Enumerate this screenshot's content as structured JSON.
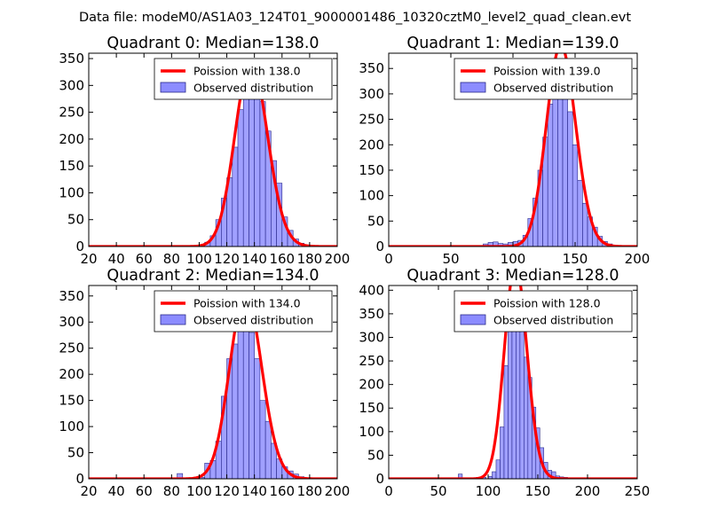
{
  "suptitle": "Data file: modeM0/AS1A03_124T01_9000001486_10320cztM0_level2_quad_clean.evt",
  "colors": {
    "bar_fill": "#8080ff",
    "bar_edge": "#2a2a8a",
    "curve": "#ff0000",
    "axis": "#000000"
  },
  "chart_data": [
    {
      "type": "bar",
      "title": "Quadrant 0: Median=138.0",
      "median": 138.0,
      "xlim": [
        20,
        200
      ],
      "ylim": [
        0,
        360
      ],
      "xticks": [
        "20",
        "40",
        "60",
        "80",
        "100",
        "120",
        "140",
        "160",
        "180",
        "200"
      ],
      "yticks": [
        "0",
        "50",
        "100",
        "150",
        "200",
        "250",
        "300",
        "350"
      ],
      "legend": [
        "Poission with 138.0",
        "Observed distribution"
      ],
      "bin_width": 4,
      "bins": [
        [
          36,
          1
        ],
        [
          48,
          1
        ],
        [
          60,
          1
        ],
        [
          72,
          1
        ],
        [
          84,
          2
        ],
        [
          88,
          2
        ],
        [
          96,
          1
        ],
        [
          100,
          3
        ],
        [
          104,
          8
        ],
        [
          108,
          20
        ],
        [
          112,
          50
        ],
        [
          116,
          90
        ],
        [
          120,
          128
        ],
        [
          124,
          185
        ],
        [
          128,
          255
        ],
        [
          132,
          285
        ],
        [
          136,
          290
        ],
        [
          140,
          292
        ],
        [
          144,
          270
        ],
        [
          148,
          215
        ],
        [
          152,
          160
        ],
        [
          156,
          118
        ],
        [
          160,
          55
        ],
        [
          164,
          30
        ],
        [
          168,
          14
        ],
        [
          172,
          6
        ],
        [
          176,
          3
        ],
        [
          180,
          1
        ]
      ]
    },
    {
      "type": "bar",
      "title": "Quadrant 1: Median=139.0",
      "median": 139.0,
      "xlim": [
        0,
        200
      ],
      "ylim": [
        0,
        380
      ],
      "xticks": [
        "0",
        "50",
        "100",
        "150",
        "200"
      ],
      "yticks": [
        "0",
        "50",
        "100",
        "150",
        "200",
        "250",
        "300",
        "350"
      ],
      "legend": [
        "Poission with 139.0",
        "Observed distribution"
      ],
      "bin_width": 4,
      "bins": [
        [
          8,
          1
        ],
        [
          20,
          1
        ],
        [
          40,
          1
        ],
        [
          56,
          1
        ],
        [
          76,
          5
        ],
        [
          80,
          8
        ],
        [
          84,
          9
        ],
        [
          88,
          6
        ],
        [
          92,
          5
        ],
        [
          96,
          8
        ],
        [
          100,
          10
        ],
        [
          104,
          12
        ],
        [
          108,
          22
        ],
        [
          112,
          55
        ],
        [
          116,
          95
        ],
        [
          120,
          150
        ],
        [
          124,
          215
        ],
        [
          128,
          280
        ],
        [
          132,
          300
        ],
        [
          136,
          335
        ],
        [
          140,
          320
        ],
        [
          144,
          265
        ],
        [
          148,
          200
        ],
        [
          152,
          130
        ],
        [
          156,
          85
        ],
        [
          160,
          58
        ],
        [
          164,
          38
        ],
        [
          168,
          20
        ],
        [
          172,
          10
        ],
        [
          176,
          5
        ],
        [
          180,
          2
        ]
      ]
    },
    {
      "type": "bar",
      "title": "Quadrant 2: Median=134.0",
      "median": 134.0,
      "xlim": [
        20,
        200
      ],
      "ylim": [
        0,
        370
      ],
      "xticks": [
        "20",
        "40",
        "60",
        "80",
        "100",
        "120",
        "140",
        "160",
        "180",
        "200"
      ],
      "yticks": [
        "0",
        "50",
        "100",
        "150",
        "200",
        "250",
        "300",
        "350"
      ],
      "legend": [
        "Poission with 134.0",
        "Observed distribution"
      ],
      "bin_width": 4,
      "bins": [
        [
          28,
          1
        ],
        [
          56,
          1
        ],
        [
          72,
          1
        ],
        [
          84,
          10
        ],
        [
          92,
          2
        ],
        [
          100,
          3
        ],
        [
          104,
          30
        ],
        [
          108,
          35
        ],
        [
          112,
          72
        ],
        [
          116,
          158
        ],
        [
          120,
          230
        ],
        [
          124,
          258
        ],
        [
          128,
          300
        ],
        [
          132,
          285
        ],
        [
          136,
          280
        ],
        [
          140,
          230
        ],
        [
          144,
          150
        ],
        [
          148,
          110
        ],
        [
          152,
          68
        ],
        [
          156,
          38
        ],
        [
          160,
          23
        ],
        [
          164,
          15
        ],
        [
          168,
          9
        ],
        [
          172,
          4
        ],
        [
          176,
          2
        ]
      ]
    },
    {
      "type": "bar",
      "title": "Quadrant 3: Median=128.0",
      "median": 128.0,
      "xlim": [
        0,
        250
      ],
      "ylim": [
        0,
        410
      ],
      "xticks": [
        "0",
        "50",
        "100",
        "150",
        "200",
        "250"
      ],
      "yticks": [
        "0",
        "50",
        "100",
        "150",
        "200",
        "250",
        "300",
        "350",
        "400"
      ],
      "legend": [
        "Poission with 128.0",
        "Observed distribution"
      ],
      "bin_width": 4,
      "bins": [
        [
          20,
          1
        ],
        [
          40,
          1
        ],
        [
          60,
          1
        ],
        [
          70,
          10
        ],
        [
          88,
          3
        ],
        [
          94,
          3
        ],
        [
          100,
          5
        ],
        [
          104,
          15
        ],
        [
          108,
          40
        ],
        [
          112,
          110
        ],
        [
          116,
          240
        ],
        [
          120,
          322
        ],
        [
          124,
          368
        ],
        [
          128,
          385
        ],
        [
          132,
          350
        ],
        [
          136,
          258
        ],
        [
          140,
          215
        ],
        [
          144,
          152
        ],
        [
          148,
          108
        ],
        [
          152,
          66
        ],
        [
          156,
          35
        ],
        [
          160,
          18
        ],
        [
          164,
          15
        ],
        [
          168,
          6
        ],
        [
          172,
          4
        ],
        [
          176,
          3
        ],
        [
          180,
          2
        ]
      ]
    }
  ]
}
